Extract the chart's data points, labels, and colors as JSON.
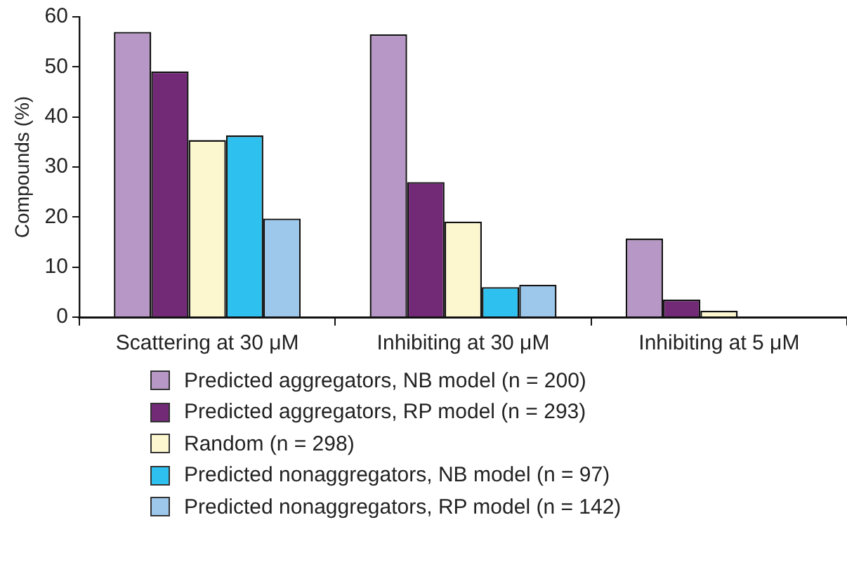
{
  "chart_data": {
    "type": "bar",
    "ylabel": "Compounds (%)",
    "categories": [
      "Scattering at 30 μM",
      "Inhibiting at 30 μM",
      "Inhibiting at 5 μM"
    ],
    "ylim": [
      0,
      60
    ],
    "yticks": [
      0,
      10,
      20,
      30,
      40,
      50,
      60
    ],
    "grid": false,
    "legend": "bottom",
    "series": [
      {
        "name": "Predicted aggregators, NB model (n = 200)",
        "color": "#b797c6",
        "values": [
          57.0,
          56.5,
          15.7
        ]
      },
      {
        "name": "Predicted aggregators, RP model (n = 293)",
        "color": "#722a77",
        "values": [
          49.1,
          27.0,
          3.5
        ]
      },
      {
        "name": "Random (n = 298)",
        "color": "#fdf7d0",
        "values": [
          35.4,
          19.1,
          1.3
        ]
      },
      {
        "name": "Predicted nonaggregators, NB model (n = 97)",
        "color": "#2ec0ef",
        "values": [
          36.3,
          6.0,
          0
        ]
      },
      {
        "name": "Predicted nonaggregators, RP model (n = 142)",
        "color": "#9dc8ec",
        "values": [
          19.7,
          6.5,
          0
        ]
      }
    ]
  }
}
